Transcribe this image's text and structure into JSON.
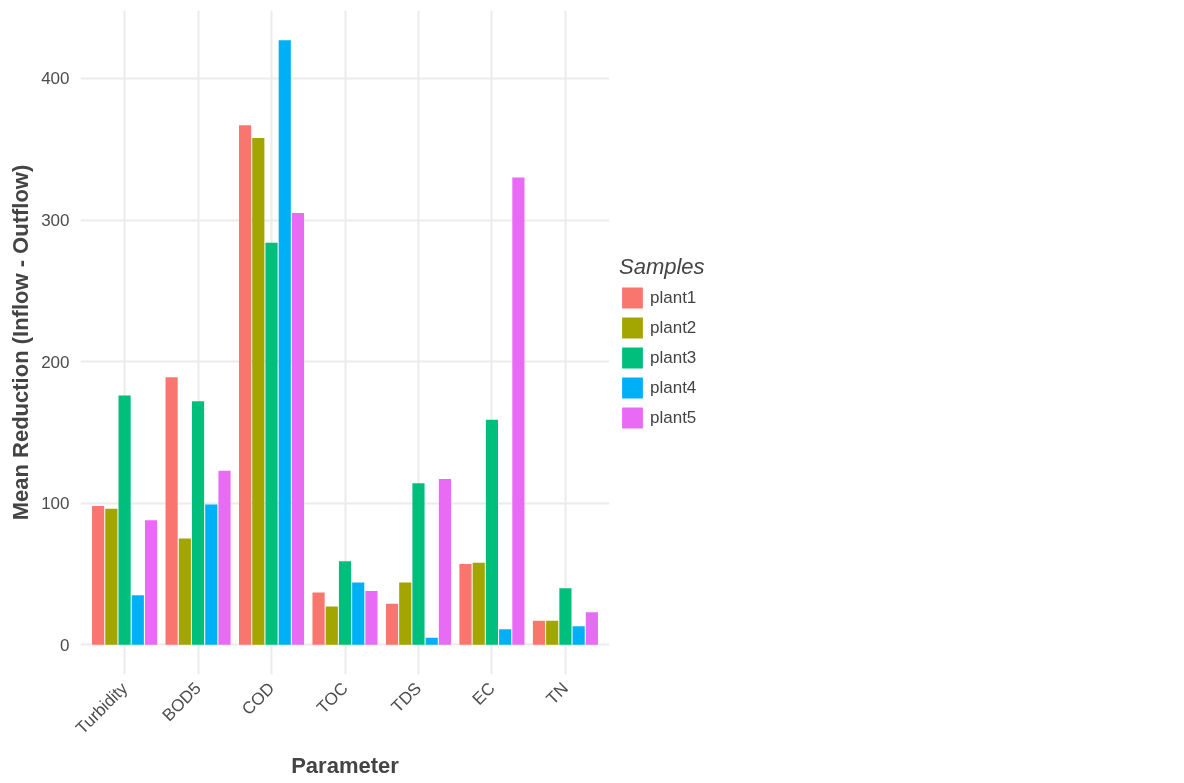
{
  "chart_data": {
    "type": "bar",
    "xlabel": "Parameter",
    "ylabel": "Mean Reduction (Inflow - Outflow)",
    "legend_title": "Samples",
    "legend": "right",
    "grid": true,
    "categories": [
      "Turbidity",
      "BOD5",
      "COD",
      "TOC",
      "TDS",
      "EC",
      "TN"
    ],
    "ylim": [
      -21,
      448
    ],
    "yticks": [
      0,
      100,
      200,
      300,
      400
    ],
    "series": [
      {
        "name": "plant1",
        "color": "#f8766d",
        "values": [
          98,
          189,
          367,
          37,
          29,
          57,
          17
        ]
      },
      {
        "name": "plant2",
        "color": "#a3a500",
        "values": [
          96,
          75,
          358,
          27,
          44,
          58,
          17
        ]
      },
      {
        "name": "plant3",
        "color": "#00bf7d",
        "values": [
          176,
          172,
          284,
          59,
          114,
          159,
          40
        ]
      },
      {
        "name": "plant4",
        "color": "#00b0f6",
        "values": [
          35,
          99,
          427,
          44,
          5,
          11,
          13
        ]
      },
      {
        "name": "plant5",
        "color": "#e76bf3",
        "values": [
          88,
          123,
          305,
          38,
          117,
          330,
          23
        ]
      }
    ]
  }
}
